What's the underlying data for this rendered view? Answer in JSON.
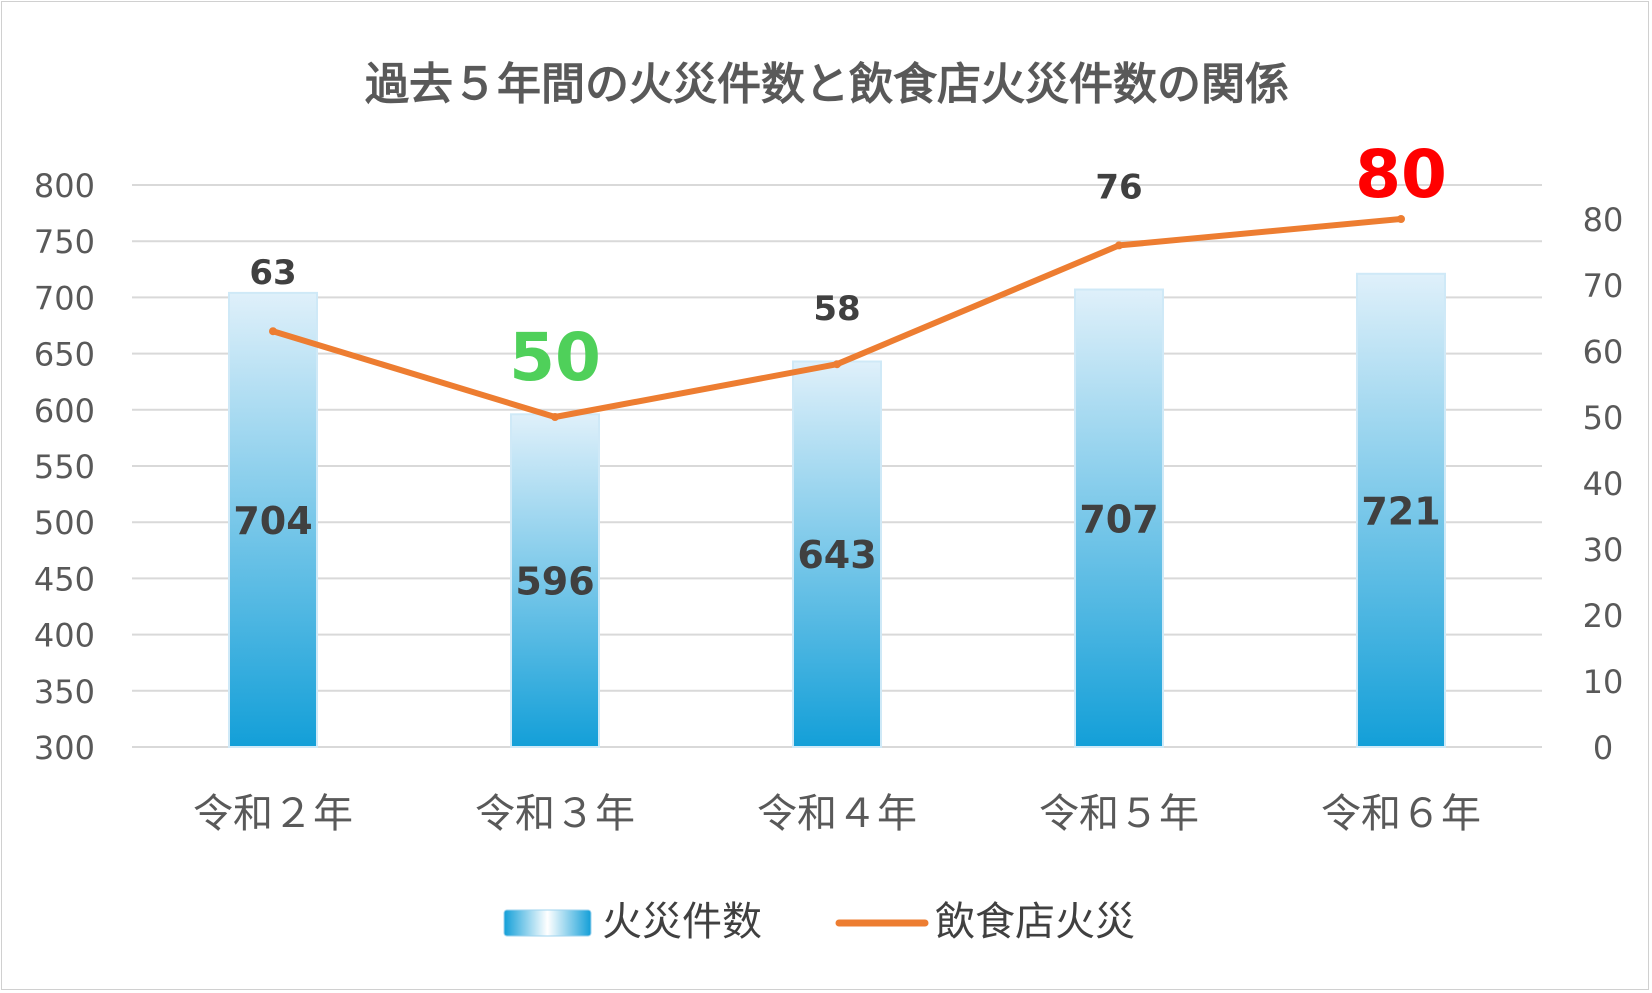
{
  "chart_data": {
    "type": "bar+line",
    "title": "過去５年間の火災件数と飲食店火災件数の関係",
    "categories": [
      "令和２年",
      "令和３年",
      "令和４年",
      "令和５年",
      "令和６年"
    ],
    "series": [
      {
        "name": "火災件数",
        "type": "bar",
        "axis": "left",
        "values": [
          704,
          596,
          643,
          707,
          721
        ],
        "labels": [
          "704",
          "596",
          "643",
          "707",
          "721"
        ],
        "color_top": "#dff0fa",
        "color_bottom": "#139fd8"
      },
      {
        "name": "飲食店火災",
        "type": "line",
        "axis": "right",
        "values": [
          63,
          50,
          58,
          76,
          80
        ],
        "labels": [
          "63",
          "50",
          "58",
          "76",
          "80"
        ],
        "color": "#ed7d31",
        "label_colors": [
          "#404040",
          "#4fd05a",
          "#404040",
          "#404040",
          "#ff0000"
        ],
        "label_emphasis": [
          false,
          true,
          false,
          false,
          true
        ]
      }
    ],
    "y_left": {
      "min": 300,
      "max": 800,
      "step": 50,
      "ticks": [
        "300",
        "350",
        "400",
        "450",
        "500",
        "550",
        "600",
        "650",
        "700",
        "750",
        "800"
      ]
    },
    "y_right": {
      "min": 0,
      "max": 85,
      "step": 10,
      "ticks": [
        "0",
        "10",
        "20",
        "30",
        "40",
        "50",
        "60",
        "70",
        "80"
      ]
    },
    "grid": true,
    "gridline_color": "#d9d9d9",
    "legend_position": "bottom"
  }
}
